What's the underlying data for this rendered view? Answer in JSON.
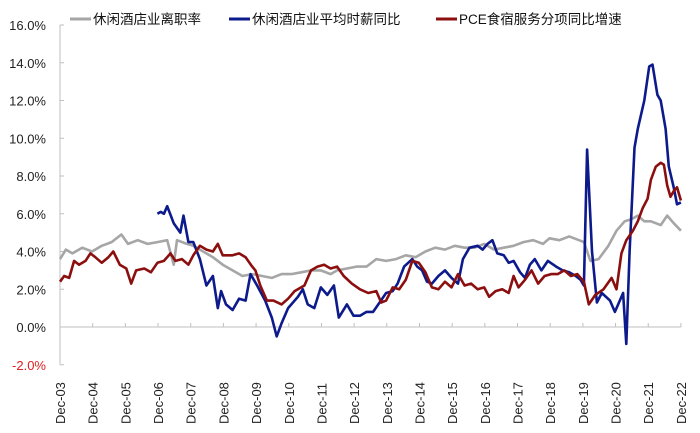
{
  "chart_data": {
    "type": "line",
    "title": "",
    "xlabel": "",
    "ylabel": "",
    "ylim": [
      -2.0,
      16.0
    ],
    "y_ticks": [
      "16.0%",
      "14.0%",
      "12.0%",
      "10.0%",
      "8.0%",
      "6.0%",
      "4.0%",
      "2.0%",
      "0.0%",
      "-2.0%"
    ],
    "y_tick_values": [
      16,
      14,
      12,
      10,
      8,
      6,
      4,
      2,
      0,
      -2
    ],
    "x_ticks": [
      "Dec-03",
      "Dec-04",
      "Dec-05",
      "Dec-06",
      "Dec-07",
      "Dec-08",
      "Dec-09",
      "Dec-10",
      "Dec-11",
      "Dec-12",
      "Dec-13",
      "Dec-14",
      "Dec-15",
      "Dec-16",
      "Dec-17",
      "Dec-18",
      "Dec-19",
      "Dec-20",
      "Dec-21",
      "Dec-22"
    ],
    "grid": false,
    "legend_position": "top",
    "series": [
      {
        "name": "休闲酒店业离职率",
        "color": "#a6a6a6",
        "points": [
          [
            2003.92,
            3.6
          ],
          [
            2004.1,
            4.1
          ],
          [
            2004.3,
            3.9
          ],
          [
            2004.6,
            4.2
          ],
          [
            2004.9,
            4.0
          ],
          [
            2005.2,
            4.3
          ],
          [
            2005.5,
            4.5
          ],
          [
            2005.8,
            4.9
          ],
          [
            2006.0,
            4.4
          ],
          [
            2006.3,
            4.6
          ],
          [
            2006.6,
            4.4
          ],
          [
            2006.9,
            4.5
          ],
          [
            2007.2,
            4.6
          ],
          [
            2007.4,
            3.3
          ],
          [
            2007.5,
            4.6
          ],
          [
            2007.8,
            4.4
          ],
          [
            2008.0,
            4.3
          ],
          [
            2008.3,
            4.0
          ],
          [
            2008.6,
            3.7
          ],
          [
            2008.9,
            3.3
          ],
          [
            2009.2,
            3.0
          ],
          [
            2009.5,
            2.7
          ],
          [
            2009.8,
            2.8
          ],
          [
            2010.1,
            2.7
          ],
          [
            2010.4,
            2.6
          ],
          [
            2010.7,
            2.8
          ],
          [
            2011.0,
            2.8
          ],
          [
            2011.3,
            2.9
          ],
          [
            2011.6,
            3.0
          ],
          [
            2011.9,
            3.0
          ],
          [
            2012.2,
            2.8
          ],
          [
            2012.4,
            3.0
          ],
          [
            2012.7,
            3.1
          ],
          [
            2013.0,
            3.2
          ],
          [
            2013.3,
            3.2
          ],
          [
            2013.6,
            3.6
          ],
          [
            2013.9,
            3.5
          ],
          [
            2014.2,
            3.6
          ],
          [
            2014.5,
            3.8
          ],
          [
            2014.8,
            3.7
          ],
          [
            2015.1,
            4.0
          ],
          [
            2015.4,
            4.2
          ],
          [
            2015.7,
            4.1
          ],
          [
            2016.0,
            4.3
          ],
          [
            2016.3,
            4.2
          ],
          [
            2016.6,
            4.2
          ],
          [
            2016.9,
            4.4
          ],
          [
            2017.2,
            4.1
          ],
          [
            2017.5,
            4.2
          ],
          [
            2017.8,
            4.3
          ],
          [
            2018.1,
            4.5
          ],
          [
            2018.4,
            4.6
          ],
          [
            2018.7,
            4.4
          ],
          [
            2018.9,
            4.7
          ],
          [
            2019.2,
            4.6
          ],
          [
            2019.5,
            4.8
          ],
          [
            2019.8,
            4.6
          ],
          [
            2019.95,
            4.5
          ],
          [
            2020.15,
            3.5
          ],
          [
            2020.4,
            3.6
          ],
          [
            2020.7,
            4.3
          ],
          [
            2020.95,
            5.1
          ],
          [
            2021.2,
            5.6
          ],
          [
            2021.4,
            5.7
          ],
          [
            2021.6,
            5.9
          ],
          [
            2021.8,
            5.6
          ],
          [
            2022.0,
            5.6
          ],
          [
            2022.3,
            5.4
          ],
          [
            2022.5,
            5.9
          ],
          [
            2022.7,
            5.5
          ],
          [
            2022.92,
            5.1
          ]
        ]
      },
      {
        "name": "休闲酒店业平均时薪同比",
        "color": "#0d1a8c",
        "points": [
          [
            2006.9,
            6.0
          ],
          [
            2007.0,
            6.1
          ],
          [
            2007.1,
            6.0
          ],
          [
            2007.2,
            6.4
          ],
          [
            2007.4,
            5.5
          ],
          [
            2007.6,
            5.0
          ],
          [
            2007.7,
            5.9
          ],
          [
            2007.85,
            4.5
          ],
          [
            2008.0,
            4.5
          ],
          [
            2008.2,
            3.6
          ],
          [
            2008.4,
            2.2
          ],
          [
            2008.6,
            2.7
          ],
          [
            2008.75,
            1.0
          ],
          [
            2008.85,
            1.9
          ],
          [
            2009.0,
            1.2
          ],
          [
            2009.2,
            0.9
          ],
          [
            2009.4,
            1.5
          ],
          [
            2009.6,
            1.4
          ],
          [
            2009.75,
            2.8
          ],
          [
            2009.95,
            2.2
          ],
          [
            2010.2,
            1.4
          ],
          [
            2010.4,
            0.5
          ],
          [
            2010.55,
            -0.5
          ],
          [
            2010.7,
            0.2
          ],
          [
            2010.9,
            1.0
          ],
          [
            2011.2,
            1.6
          ],
          [
            2011.35,
            2.0
          ],
          [
            2011.5,
            1.2
          ],
          [
            2011.7,
            1.0
          ],
          [
            2011.9,
            2.1
          ],
          [
            2012.1,
            1.7
          ],
          [
            2012.3,
            2.2
          ],
          [
            2012.45,
            0.5
          ],
          [
            2012.7,
            1.2
          ],
          [
            2012.9,
            0.6
          ],
          [
            2013.1,
            0.6
          ],
          [
            2013.3,
            0.8
          ],
          [
            2013.5,
            0.8
          ],
          [
            2013.7,
            1.3
          ],
          [
            2013.9,
            1.8
          ],
          [
            2014.1,
            1.9
          ],
          [
            2014.25,
            2.3
          ],
          [
            2014.45,
            3.2
          ],
          [
            2014.7,
            3.6
          ],
          [
            2014.85,
            3.2
          ],
          [
            2015.0,
            3.0
          ],
          [
            2015.15,
            2.4
          ],
          [
            2015.3,
            2.3
          ],
          [
            2015.5,
            2.7
          ],
          [
            2015.7,
            3.0
          ],
          [
            2015.9,
            2.6
          ],
          [
            2016.1,
            2.3
          ],
          [
            2016.25,
            3.6
          ],
          [
            2016.45,
            4.2
          ],
          [
            2016.7,
            4.3
          ],
          [
            2016.85,
            4.1
          ],
          [
            2017.0,
            4.4
          ],
          [
            2017.15,
            4.6
          ],
          [
            2017.3,
            3.9
          ],
          [
            2017.5,
            3.8
          ],
          [
            2017.65,
            3.4
          ],
          [
            2017.8,
            3.5
          ],
          [
            2018.0,
            2.9
          ],
          [
            2018.15,
            2.6
          ],
          [
            2018.3,
            3.3
          ],
          [
            2018.45,
            3.6
          ],
          [
            2018.65,
            3.0
          ],
          [
            2018.85,
            3.5
          ],
          [
            2019.1,
            3.2
          ],
          [
            2019.3,
            3.0
          ],
          [
            2019.5,
            2.9
          ],
          [
            2019.7,
            2.7
          ],
          [
            2019.85,
            2.5
          ],
          [
            2019.95,
            2.2
          ],
          [
            2020.05,
            9.4
          ],
          [
            2020.2,
            4.0
          ],
          [
            2020.35,
            1.3
          ],
          [
            2020.5,
            1.8
          ],
          [
            2020.75,
            1.4
          ],
          [
            2020.9,
            0.8
          ],
          [
            2021.05,
            1.4
          ],
          [
            2021.15,
            1.8
          ],
          [
            2021.25,
            -0.9
          ],
          [
            2021.35,
            4.0
          ],
          [
            2021.5,
            9.5
          ],
          [
            2021.6,
            10.5
          ],
          [
            2021.8,
            12.0
          ],
          [
            2021.95,
            13.8
          ],
          [
            2022.05,
            13.9
          ],
          [
            2022.2,
            12.3
          ],
          [
            2022.3,
            12.0
          ],
          [
            2022.45,
            10.5
          ],
          [
            2022.55,
            8.5
          ],
          [
            2022.7,
            7.4
          ],
          [
            2022.8,
            6.5
          ],
          [
            2022.92,
            6.6
          ]
        ]
      },
      {
        "name": "PCE食宿服务分项同比增速",
        "color": "#8b0f0f",
        "points": [
          [
            2003.92,
            2.4
          ],
          [
            2004.05,
            2.7
          ],
          [
            2004.2,
            2.6
          ],
          [
            2004.35,
            3.5
          ],
          [
            2004.5,
            3.3
          ],
          [
            2004.7,
            3.5
          ],
          [
            2004.85,
            3.9
          ],
          [
            2005.0,
            3.7
          ],
          [
            2005.2,
            3.4
          ],
          [
            2005.4,
            3.7
          ],
          [
            2005.55,
            4.0
          ],
          [
            2005.75,
            3.3
          ],
          [
            2005.95,
            3.1
          ],
          [
            2006.1,
            2.3
          ],
          [
            2006.25,
            3.0
          ],
          [
            2006.5,
            3.1
          ],
          [
            2006.7,
            2.9
          ],
          [
            2006.9,
            3.4
          ],
          [
            2007.1,
            3.5
          ],
          [
            2007.3,
            3.9
          ],
          [
            2007.45,
            3.5
          ],
          [
            2007.65,
            3.6
          ],
          [
            2007.85,
            3.3
          ],
          [
            2008.0,
            3.8
          ],
          [
            2008.2,
            4.3
          ],
          [
            2008.4,
            4.1
          ],
          [
            2008.6,
            4.0
          ],
          [
            2008.75,
            4.4
          ],
          [
            2008.9,
            3.8
          ],
          [
            2009.2,
            3.8
          ],
          [
            2009.4,
            3.9
          ],
          [
            2009.6,
            3.7
          ],
          [
            2009.8,
            3.2
          ],
          [
            2009.9,
            3.0
          ],
          [
            2010.05,
            2.2
          ],
          [
            2010.25,
            1.4
          ],
          [
            2010.45,
            1.4
          ],
          [
            2010.7,
            1.2
          ],
          [
            2010.9,
            1.5
          ],
          [
            2011.1,
            1.9
          ],
          [
            2011.4,
            2.2
          ],
          [
            2011.6,
            3.0
          ],
          [
            2011.8,
            3.2
          ],
          [
            2012.0,
            3.3
          ],
          [
            2012.2,
            3.1
          ],
          [
            2012.4,
            3.2
          ],
          [
            2012.6,
            2.7
          ],
          [
            2012.85,
            2.3
          ],
          [
            2013.1,
            2.0
          ],
          [
            2013.35,
            1.8
          ],
          [
            2013.6,
            1.9
          ],
          [
            2013.75,
            1.3
          ],
          [
            2013.9,
            1.4
          ],
          [
            2014.1,
            2.1
          ],
          [
            2014.3,
            2.0
          ],
          [
            2014.5,
            2.5
          ],
          [
            2014.7,
            3.5
          ],
          [
            2014.9,
            3.4
          ],
          [
            2015.1,
            2.9
          ],
          [
            2015.3,
            2.1
          ],
          [
            2015.5,
            2.0
          ],
          [
            2015.7,
            2.4
          ],
          [
            2015.9,
            2.1
          ],
          [
            2016.1,
            2.8
          ],
          [
            2016.3,
            2.2
          ],
          [
            2016.5,
            2.3
          ],
          [
            2016.7,
            2.0
          ],
          [
            2016.9,
            2.1
          ],
          [
            2017.05,
            1.6
          ],
          [
            2017.25,
            1.9
          ],
          [
            2017.45,
            2.0
          ],
          [
            2017.65,
            1.8
          ],
          [
            2017.8,
            2.7
          ],
          [
            2017.95,
            2.1
          ],
          [
            2018.15,
            2.5
          ],
          [
            2018.35,
            3.0
          ],
          [
            2018.55,
            2.3
          ],
          [
            2018.75,
            2.7
          ],
          [
            2018.95,
            2.8
          ],
          [
            2019.15,
            2.8
          ],
          [
            2019.35,
            3.0
          ],
          [
            2019.55,
            2.7
          ],
          [
            2019.75,
            2.8
          ],
          [
            2019.95,
            2.4
          ],
          [
            2020.1,
            1.2
          ],
          [
            2020.3,
            1.7
          ],
          [
            2020.55,
            2.0
          ],
          [
            2020.8,
            2.6
          ],
          [
            2020.95,
            2.0
          ],
          [
            2021.1,
            3.9
          ],
          [
            2021.25,
            4.6
          ],
          [
            2021.45,
            5.1
          ],
          [
            2021.6,
            5.6
          ],
          [
            2021.75,
            6.3
          ],
          [
            2021.9,
            6.8
          ],
          [
            2022.0,
            7.8
          ],
          [
            2022.15,
            8.5
          ],
          [
            2022.3,
            8.7
          ],
          [
            2022.4,
            8.6
          ],
          [
            2022.5,
            7.5
          ],
          [
            2022.6,
            6.9
          ],
          [
            2022.7,
            7.2
          ],
          [
            2022.8,
            7.4
          ],
          [
            2022.92,
            6.7
          ]
        ]
      }
    ]
  },
  "legend": {
    "items": [
      {
        "label": "休闲酒店业离职率",
        "color": "#a6a6a6"
      },
      {
        "label": "休闲酒店业平均时薪同比",
        "color": "#0d1a8c"
      },
      {
        "label": "PCE食宿服务分项同比增速",
        "color": "#8b0f0f"
      }
    ]
  }
}
